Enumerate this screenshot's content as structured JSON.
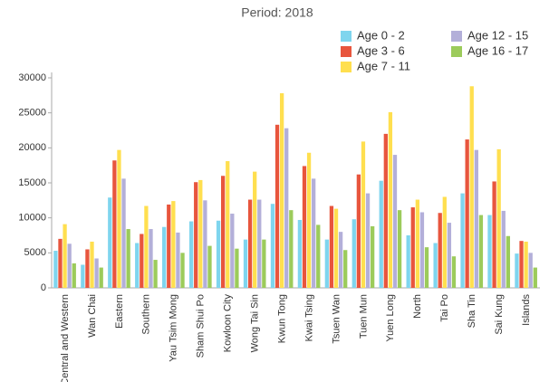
{
  "chart_data": {
    "type": "bar",
    "title": "Period: 2018",
    "categories": [
      "Central and Western",
      "Wan Chai",
      "Eastern",
      "Southern",
      "Yau Tsim Mong",
      "Sham Shui Po",
      "Kowloon City",
      "Wong Tai Sin",
      "Kwun Tong",
      "Kwai Tsing",
      "Tsuen Wan",
      "Tuen Mun",
      "Yuen Long",
      "North",
      "Tai Po",
      "Sha Tin",
      "Sai Kung",
      "Islands"
    ],
    "series": [
      {
        "name": "Age 0 - 2",
        "color": "#7fd5ee",
        "values": [
          5300,
          3300,
          12900,
          6400,
          8700,
          9500,
          9600,
          6900,
          12000,
          9700,
          6900,
          9800,
          15300,
          7500,
          6400,
          13500,
          10400,
          4900
        ]
      },
      {
        "name": "Age 3 - 6",
        "color": "#e8553d",
        "values": [
          7000,
          5500,
          18200,
          7700,
          11900,
          15100,
          16000,
          12600,
          23300,
          17400,
          11700,
          16200,
          22000,
          11500,
          10700,
          21200,
          15200,
          6700
        ]
      },
      {
        "name": "Age 7 - 11",
        "color": "#ffdf4f",
        "values": [
          9100,
          6600,
          19700,
          11700,
          12400,
          15400,
          18100,
          16600,
          27800,
          19300,
          11300,
          20900,
          25100,
          12600,
          13000,
          28800,
          19800,
          6600
        ]
      },
      {
        "name": "Age 12 - 15",
        "color": "#b3afd9",
        "values": [
          6300,
          4200,
          15600,
          8400,
          7900,
          12500,
          10600,
          12600,
          22800,
          15600,
          8000,
          13500,
          19000,
          10800,
          9300,
          19700,
          11000,
          5000
        ]
      },
      {
        "name": "Age 16 - 17",
        "color": "#9ccb5b",
        "values": [
          3500,
          2900,
          8400,
          4000,
          5000,
          6000,
          5600,
          6900,
          11100,
          9000,
          5400,
          8800,
          11100,
          5800,
          4500,
          10400,
          7400,
          2900
        ]
      }
    ],
    "ylim": [
      0,
      30000
    ],
    "yticks": [
      0,
      5000,
      10000,
      15000,
      20000,
      25000,
      30000
    ],
    "grid": false
  }
}
